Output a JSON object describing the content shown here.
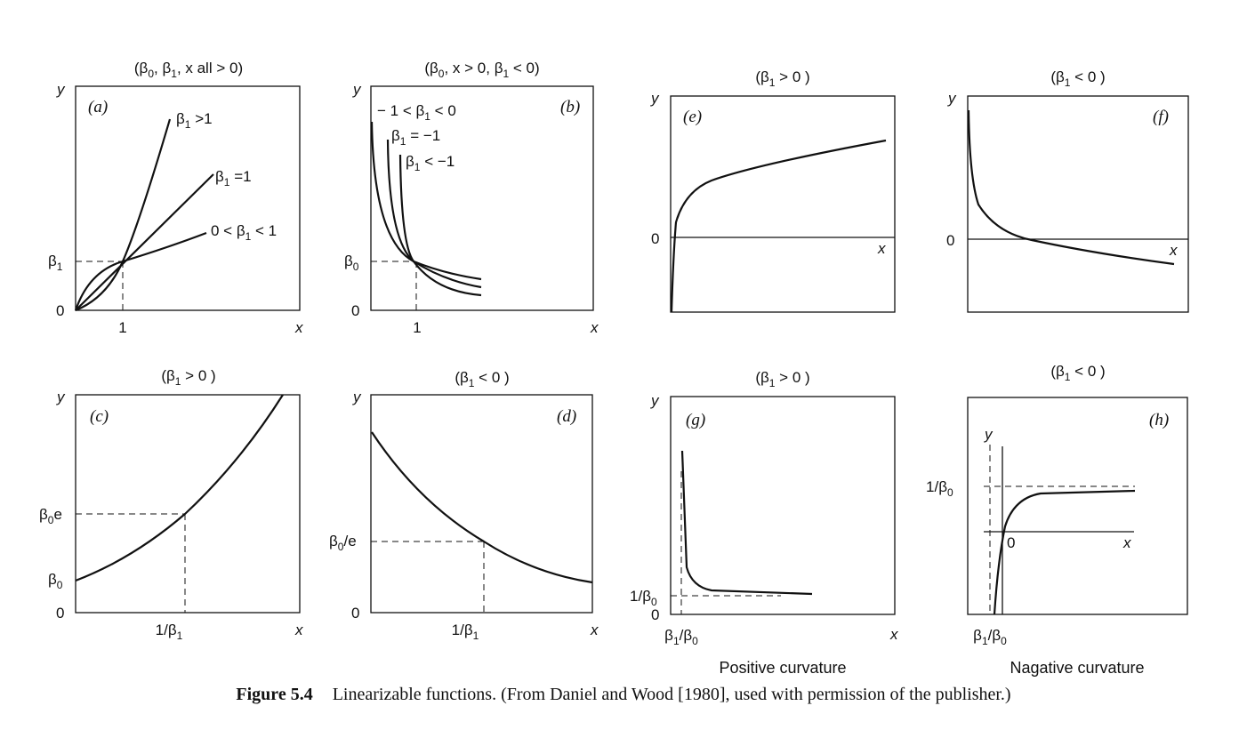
{
  "figure": {
    "caption_label": "Figure 5.4",
    "caption_text": "Linearizable functions. (From Daniel and Wood [1980], used with permission of the publisher.)"
  },
  "panels": {
    "a": {
      "tag": "(a)",
      "header": "(β0, β1, x all > 0)",
      "ylab": "y",
      "xlab": "x",
      "t_b1": "β1",
      "t_0": "0",
      "t_1": "1",
      "c1": "β1 >1",
      "c2": "β1 =1",
      "c3": "0 < β1 < 1"
    },
    "b": {
      "tag": "(b)",
      "header": "(β0, x  > 0, β1 < 0)",
      "ylab": "y",
      "xlab": "x",
      "t_b0": "β0",
      "t_0": "0",
      "t_1": "1",
      "c1": "− 1 < β1 < 0",
      "c2": "β1 = −1",
      "c3": "β1 < −1"
    },
    "c": {
      "tag": "(c)",
      "header": "(β1 > 0 )",
      "ylab": "y",
      "xlab": "x",
      "t_b0e": "β0e",
      "t_b0": "β0",
      "t_0": "0",
      "t_x": "1/β1"
    },
    "d": {
      "tag": "(d)",
      "header": "(β1 < 0 )",
      "ylab": "y",
      "xlab": "x",
      "t_b0e": "β0/e",
      "t_0": "0",
      "t_x": "1/β1"
    },
    "e": {
      "tag": "(e)",
      "header": "(β1 > 0 )",
      "ylab": "y",
      "xlab": "x",
      "t_0": "0"
    },
    "f": {
      "tag": "(f)",
      "header": "(β1 < 0 )",
      "ylab": "y",
      "xlab": "x",
      "t_0": "0"
    },
    "g": {
      "tag": "(g)",
      "header": "(β1 > 0 )",
      "ylab": "y",
      "xlab": "x",
      "t_inv": "1/β0",
      "t_0": "0",
      "t_x": "β1/β0",
      "footer": "Positive curvature"
    },
    "h": {
      "tag": "(h)",
      "header": "(β1 < 0 )",
      "ylab": "y",
      "xlab": "x",
      "t_inv": "1/β0",
      "t_0": "0",
      "t_x": "β1/β0",
      "footer": "Nagative curvature"
    }
  }
}
